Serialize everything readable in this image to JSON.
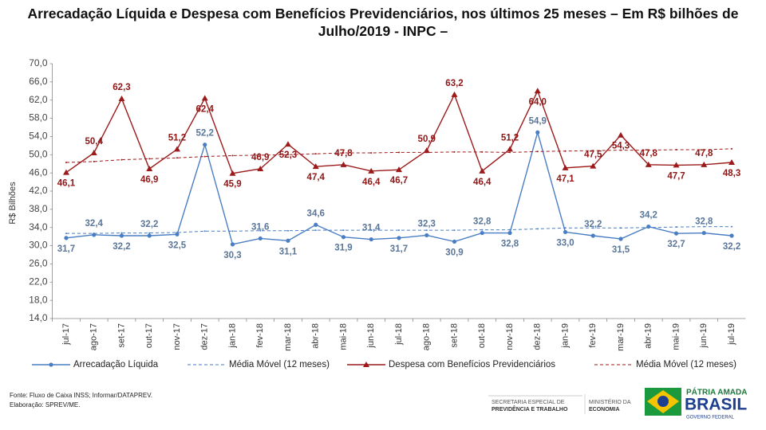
{
  "chart_data": {
    "type": "line",
    "title": "Arrecadação Líquida e Despesa com Benefícios Previdenciários, nos últimos 25 meses – Em R$ bilhões de Julho/2019 - INPC –",
    "y_label": "R$ Bilhões",
    "categories": [
      "jul-17",
      "ago-17",
      "set-17",
      "out-17",
      "nov-17",
      "dez-17",
      "jan-18",
      "fev-18",
      "mar-18",
      "abr-18",
      "mai-18",
      "jun-18",
      "jul-18",
      "ago-18",
      "set-18",
      "out-18",
      "nov-18",
      "dez-18",
      "jan-19",
      "fev-19",
      "mar-19",
      "abr-19",
      "mai-19",
      "jun-19",
      "jul-19"
    ],
    "series": [
      {
        "name": "Arrecadação Líquida",
        "color": "#4a7ec4",
        "values": [
          31.7,
          32.4,
          32.2,
          32.2,
          32.5,
          52.2,
          30.3,
          31.6,
          31.1,
          34.6,
          31.9,
          31.4,
          31.7,
          32.3,
          30.9,
          32.8,
          32.8,
          54.9,
          33.0,
          32.2,
          31.5,
          34.2,
          32.7,
          32.8,
          32.2
        ],
        "value_labels": [
          "31,7",
          "32,4",
          "32,2",
          "32,2",
          "32,5",
          "52,2",
          "30,3",
          "31,6",
          "31,1",
          "34,6",
          "31,9",
          "31,4",
          "31,7",
          "32,3",
          "30,9",
          "32,8",
          "32,8",
          "54,9",
          "33,0",
          "32,2",
          "31,5",
          "34,2",
          "32,7",
          "32,8",
          "32,2"
        ]
      },
      {
        "name": "Média Móvel (12 meses)",
        "color": "#4a7ec4",
        "dashed": true,
        "values": [
          32.7,
          32.7,
          32.8,
          32.8,
          32.9,
          33.2,
          33.2,
          33.3,
          33.3,
          33.4,
          33.4,
          33.4,
          33.4,
          33.4,
          33.4,
          33.5,
          33.5,
          33.7,
          33.9,
          33.9,
          33.9,
          34.0,
          34.1,
          34.2,
          34.2
        ]
      },
      {
        "name": "Despesa com Benefícios Previdenciários",
        "color": "#9c1a1a",
        "values": [
          46.1,
          50.4,
          62.3,
          46.9,
          51.2,
          62.4,
          45.9,
          46.9,
          52.3,
          47.4,
          47.8,
          46.4,
          46.7,
          50.9,
          63.2,
          46.4,
          51.2,
          64.0,
          47.1,
          47.5,
          54.3,
          47.8,
          47.7,
          47.8,
          48.3
        ],
        "value_labels": [
          "46,1",
          "50,4",
          "62,3",
          "46,9",
          "51,2",
          "62,4",
          "45,9",
          "46,9",
          "52,3",
          "47,4",
          "47,8",
          "46,4",
          "46,7",
          "50,9",
          "63,2",
          "46,4",
          "51,2",
          "64,0",
          "47,1",
          "47,5",
          "54,3",
          "47,8",
          "47,7",
          "47,8",
          "48,3"
        ]
      },
      {
        "name": "Média Móvel (12 meses)",
        "color": "#9c1a1a",
        "dashed": true,
        "values": [
          48.3,
          48.5,
          48.9,
          49.1,
          49.3,
          49.6,
          49.8,
          49.9,
          50.0,
          50.2,
          50.4,
          50.4,
          50.5,
          50.5,
          50.6,
          50.6,
          50.5,
          50.7,
          50.8,
          50.9,
          51.0,
          51.0,
          51.1,
          51.1,
          51.3
        ]
      }
    ],
    "ylim": [
      14,
      70
    ],
    "yticks": [
      {
        "value": 14,
        "label": "14,0"
      },
      {
        "value": 18,
        "label": "18,0"
      },
      {
        "value": 22,
        "label": "22,0"
      },
      {
        "value": 26,
        "label": "26,0"
      },
      {
        "value": 30,
        "label": "30,0"
      },
      {
        "value": 34,
        "label": "34,0"
      },
      {
        "value": 38,
        "label": "38,0"
      },
      {
        "value": 42,
        "label": "42,0"
      },
      {
        "value": 46,
        "label": "46,0"
      },
      {
        "value": 50,
        "label": "50,0"
      },
      {
        "value": 54,
        "label": "54,0"
      },
      {
        "value": 58,
        "label": "58,0"
      },
      {
        "value": 62,
        "label": "62,0"
      },
      {
        "value": 66,
        "label": "66,0"
      },
      {
        "value": 70,
        "label": "70,0"
      }
    ],
    "grid": false,
    "legend": "bottom"
  },
  "footer": {
    "source": "Fonte: Fluxo de Caixa INSS; Informar/DATAPREV.",
    "elaboration": "Elaboração: SPREV/ME."
  },
  "logos": {
    "secretaria_line1": "SECRETARIA ESPECIAL DE",
    "secretaria_line2": "PREVIDÊNCIA E TRABALHO",
    "ministerio_line1": "MINISTÉRIO DA",
    "ministerio_line2": "ECONOMIA",
    "patria": "PÁTRIA AMADA",
    "brasil": "BRASIL",
    "governo": "GOVERNO FEDERAL"
  }
}
